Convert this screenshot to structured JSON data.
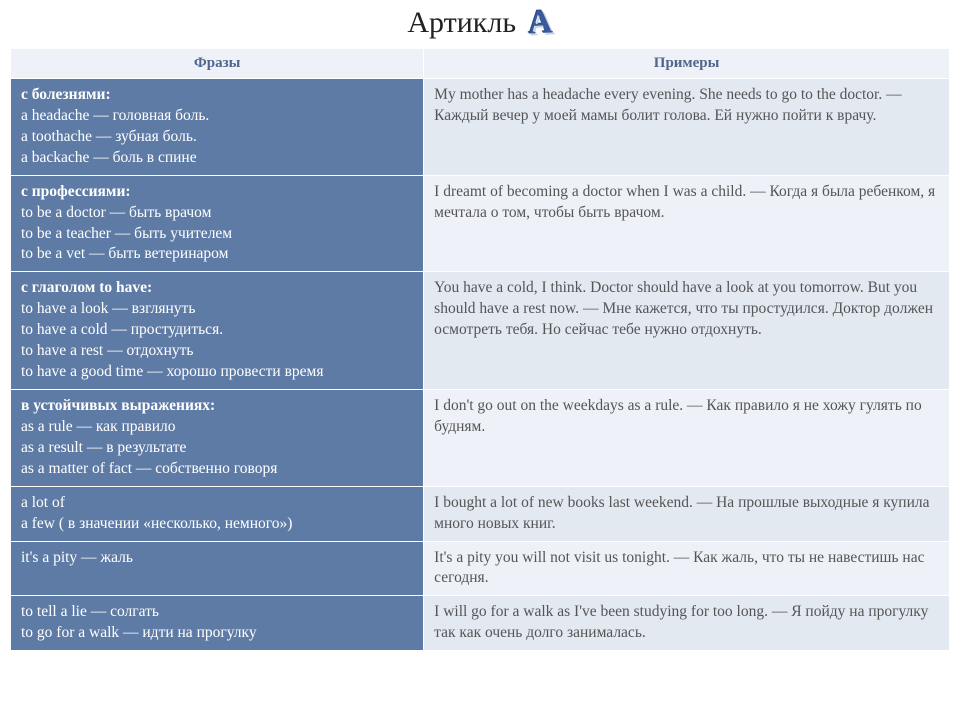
{
  "title": "Артикль",
  "title_letter": "A",
  "headers": {
    "left": "Фразы",
    "right": "Примеры"
  },
  "rows": [
    {
      "left_header": "с болезнями:",
      "left_lines": [
        "a headache — головная боль.",
        "a toothache — зубная боль.",
        "a backache — боль в спине"
      ],
      "right": "My mother has a headache every evening. She needs to go to the doctor. — Каждый вечер у моей мамы болит голова. Ей нужно пойти к врачу.",
      "stripe": "odd"
    },
    {
      "left_header": "с профессиями:",
      "left_lines": [
        "to be a doctor — быть врачом",
        "to be a teacher — быть учителем",
        "to be a vet — быть ветеринаром"
      ],
      "right": "I dreamt of becoming a doctor when I was a child. — Когда я была ребенком, я мечтала о том, чтобы быть врачом.",
      "stripe": "even"
    },
    {
      "left_header": "с глаголом to have:",
      "left_lines": [
        "to have a look — взглянуть",
        "to have a cold — простудиться.",
        "to have a rest — отдохнуть",
        " to have a good time — хорошо провести время"
      ],
      "right": "You have a cold, I think. Doctor should have a look at you tomorrow. But you should have a rest now. — Мне кажется, что ты простудился. Доктор должен осмотреть тебя. Но сейчас тебе нужно отдохнуть.",
      "stripe": "odd"
    },
    {
      "left_header": "в устойчивых выражениях:",
      "left_lines": [
        "as a rule — как правило",
        "as a result — в результате",
        "as a matter of fact — собственно говоря"
      ],
      "right": "I don't go out on the weekdays as a rule. — Как правило я не хожу гулять по будням.",
      "stripe": "even"
    },
    {
      "left_header": "",
      "left_lines": [
        "a lot of",
        "a few ( в значении «несколько, немного»)"
      ],
      "right": "I bought a lot of new books last weekend. — На прошлые выходные я купила много новых книг.",
      "stripe": "odd"
    },
    {
      "left_header": "",
      "left_lines": [
        "it's a pity — жаль"
      ],
      "right": "It's a pity you will not visit us tonight. — Как жаль, что ты не навестишь нас сегодня.",
      "stripe": "even"
    },
    {
      "left_header": "",
      "left_lines": [
        "to tell a lie — солгать",
        "to go for a walk — идти на прогулку"
      ],
      "right": "I will go for a walk as I've been studying for too long. — Я пойду на прогулку так как очень долго занималась.",
      "stripe": "odd"
    }
  ]
}
